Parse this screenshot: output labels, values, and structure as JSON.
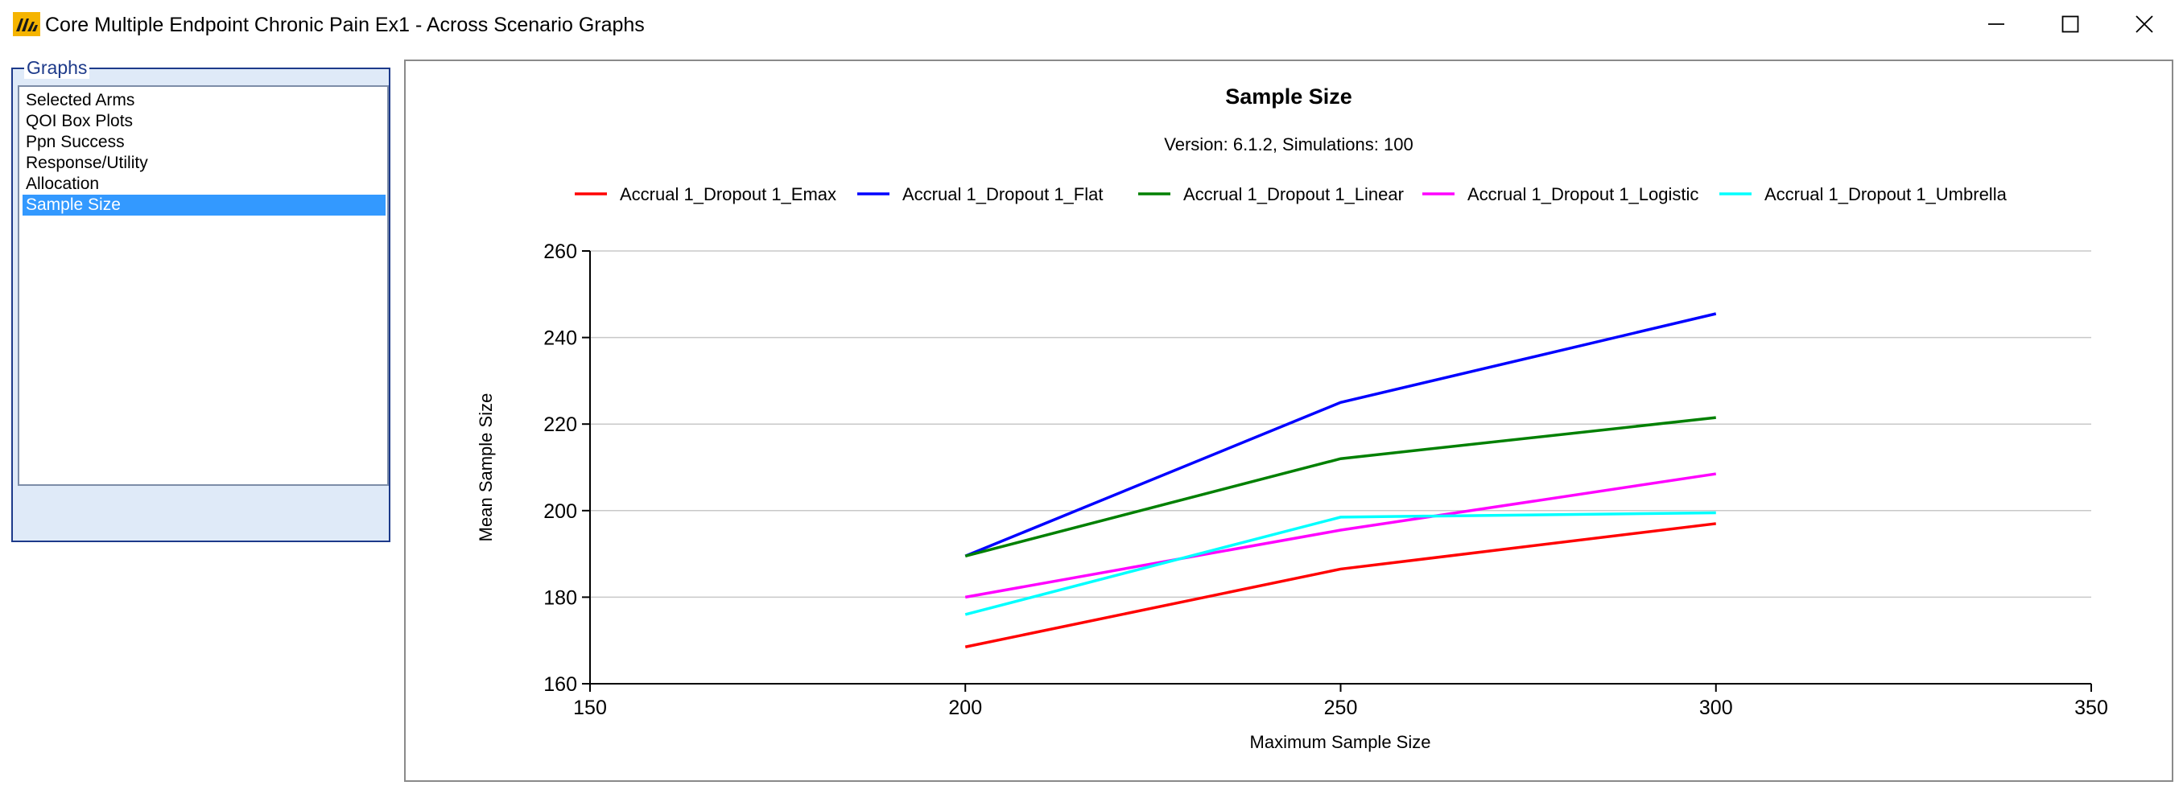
{
  "window": {
    "title": "Core Multiple Endpoint Chronic Pain Ex1 - Across Scenario Graphs"
  },
  "graphs_panel": {
    "caption": "Graphs",
    "items": [
      {
        "label": "Selected Arms",
        "selected": false
      },
      {
        "label": "QOI Box Plots",
        "selected": false
      },
      {
        "label": "Ppn Success",
        "selected": false
      },
      {
        "label": "Response/Utility",
        "selected": false
      },
      {
        "label": "Allocation",
        "selected": false
      },
      {
        "label": "Sample Size",
        "selected": true
      }
    ]
  },
  "chart_data": {
    "type": "line",
    "title": "Sample Size",
    "subtitle": "Version: 6.1.2, Simulations: 100",
    "xlabel": "Maximum Sample Size",
    "ylabel": "Mean Sample Size",
    "xlim": [
      150,
      350
    ],
    "ylim": [
      160,
      260
    ],
    "xticks": [
      "150",
      "200",
      "250",
      "300",
      "350"
    ],
    "yticks": [
      "160",
      "180",
      "200",
      "220",
      "240",
      "260"
    ],
    "x": [
      200,
      250,
      300
    ],
    "grid": "horizontal",
    "legend_position": "top",
    "series": [
      {
        "name": "Accrual 1_Dropout 1_Emax",
        "color": "#ff0000",
        "values": [
          168.5,
          186.5,
          197
        ]
      },
      {
        "name": "Accrual 1_Dropout 1_Flat",
        "color": "#0000ff",
        "values": [
          189.5,
          225,
          245.5
        ]
      },
      {
        "name": "Accrual 1_Dropout 1_Linear",
        "color": "#008000",
        "values": [
          189.5,
          212,
          221.5
        ]
      },
      {
        "name": "Accrual 1_Dropout 1_Logistic",
        "color": "#ff00ff",
        "values": [
          180,
          195.5,
          208.5
        ]
      },
      {
        "name": "Accrual 1_Dropout 1_Umbrella",
        "color": "#00ffff",
        "values": [
          176,
          198.5,
          199.5
        ]
      }
    ]
  }
}
